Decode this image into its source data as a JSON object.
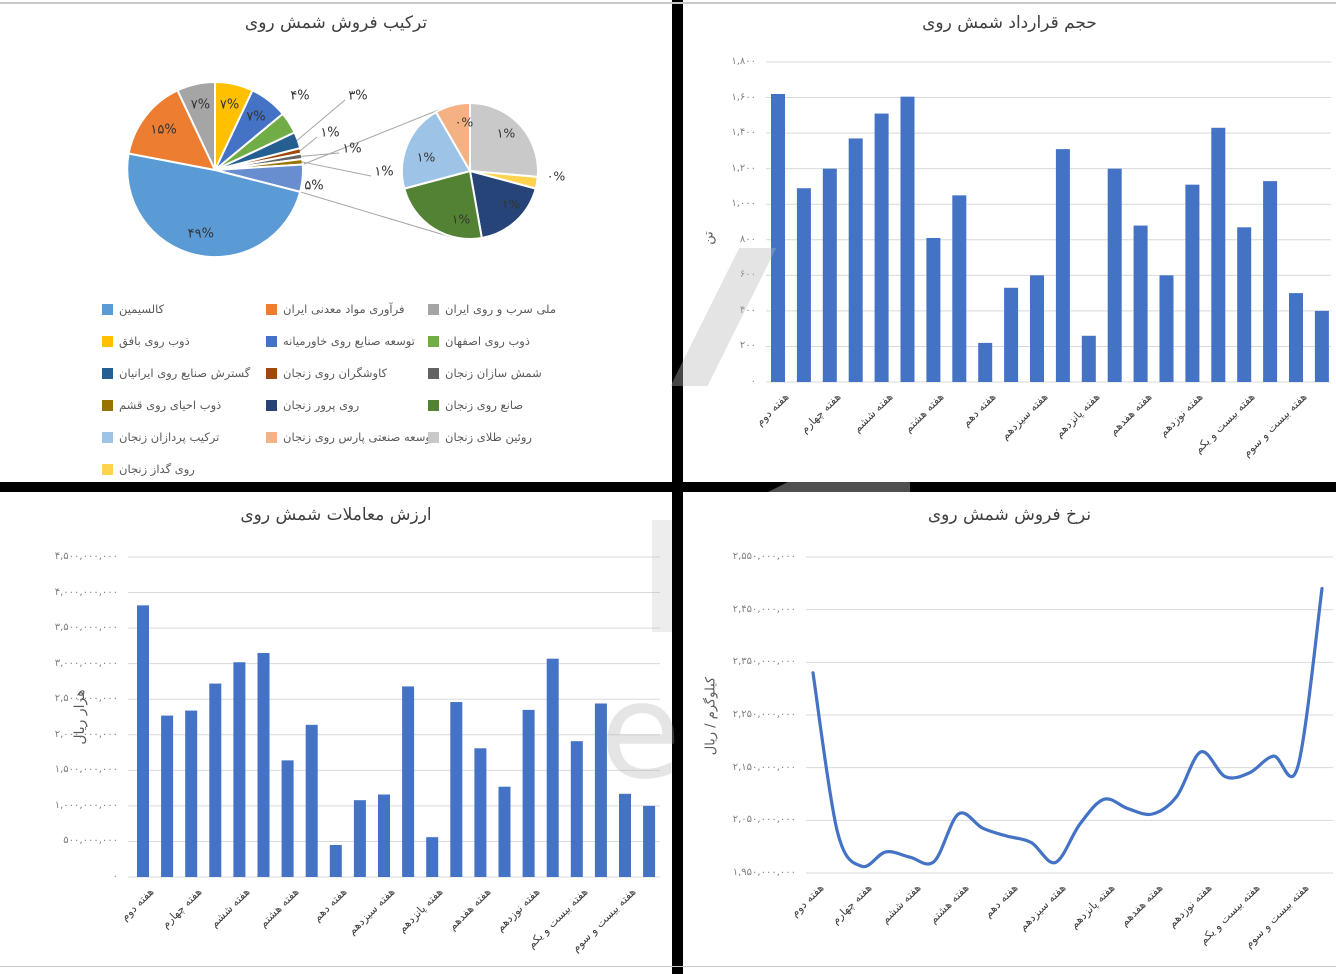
{
  "watermark": {
    "text": "e"
  },
  "chart_data": [
    {
      "type": "pie",
      "variant": "pie-of-pie",
      "title": "ترکیب فروش شمش روی",
      "slices": [
        {
          "label": "ذوب روی بافق",
          "pct": 7,
          "pct_label": "۷%",
          "color": "#FFC000"
        },
        {
          "label": "توسعه صنایع روی خاورمیانه",
          "pct": 7,
          "pct_label": "۷%",
          "color": "#4472C4"
        },
        {
          "label": "ذوب روی اصفهان",
          "pct": 4,
          "pct_label": "۴%",
          "color": "#70AD47"
        },
        {
          "label": "گسترش صنایع روی ایرانیان",
          "pct": 3,
          "pct_label": "۳%",
          "color": "#255E91"
        },
        {
          "label": "کاوشگران روی زنجان",
          "pct": 1,
          "pct_label": "۱%",
          "color": "#9E480E"
        },
        {
          "label": "شمش سازان زنجان",
          "pct": 1,
          "pct_label": "۱%",
          "color": "#636363"
        },
        {
          "label": "ذوب احیای روی قشم",
          "pct": 1,
          "pct_label": "۱%",
          "color": "#997300"
        },
        {
          "label": "",
          "name": "other",
          "pct": 5,
          "pct_label": "۵%",
          "color": "#698ED0"
        },
        {
          "label": "کالسیمین",
          "pct": 49,
          "pct_label": "۴۹%",
          "color": "#5B9BD5"
        },
        {
          "label": "فرآوری مواد معدنی ایران",
          "pct": 15,
          "pct_label": "۱۵%",
          "color": "#ED7D31"
        },
        {
          "label": "ملی سرب و روی ایران",
          "pct": 7,
          "pct_label": "۷%",
          "color": "#A5A5A5"
        }
      ],
      "secondary_slices": [
        {
          "label": "روئین طلای زنجان",
          "pct": 1,
          "pct_label": "۱%",
          "color": "#C9C9C9",
          "arc": 95
        },
        {
          "label": "روی گداز زنجان",
          "pct": 0,
          "pct_label": "۰%",
          "color": "#FFD34D",
          "arc": 10
        },
        {
          "label": "روی پرور زنجان",
          "pct": 1,
          "pct_label": "۱%",
          "color": "#264478",
          "arc": 65
        },
        {
          "label": "صانع روی زنجان",
          "pct": 1,
          "pct_label": "۱%",
          "color": "#548235",
          "arc": 85
        },
        {
          "label": "ترکیب پردازان زنجان",
          "pct": 1,
          "pct_label": "۱%",
          "color": "#9DC3E6",
          "arc": 75
        },
        {
          "label": "توسعه صنعتی پارس روی زنجان",
          "pct": 0,
          "pct_label": "۰%",
          "color": "#F4B183",
          "arc": 30
        }
      ],
      "legend_columns": [
        [
          {
            "label": "کالسیمین",
            "color": "#5B9BD5"
          },
          {
            "label": "ذوب روی بافق",
            "color": "#FFC000"
          },
          {
            "label": "گسترش صنایع روی ایرانیان",
            "color": "#255E91"
          },
          {
            "label": "ذوب احیای روی قشم",
            "color": "#997300"
          },
          {
            "label": "ترکیب پردازان زنجان",
            "color": "#9DC3E6"
          },
          {
            "label": "روی گداز زنجان",
            "color": "#FFD34D"
          }
        ],
        [
          {
            "label": "فرآوری مواد معدنی ایران",
            "color": "#ED7D31"
          },
          {
            "label": "توسعه صنایع روی خاورمیانه",
            "color": "#4472C4"
          },
          {
            "label": "کاوشگران روی زنجان",
            "color": "#9E480E"
          },
          {
            "label": "روی پرور زنجان",
            "color": "#264478"
          },
          {
            "label": "توسعه صنعتی پارس روی زنجان",
            "color": "#F4B183"
          }
        ],
        [
          {
            "label": "ملی سرب و روی ایران",
            "color": "#A5A5A5"
          },
          {
            "label": "ذوب روی اصفهان",
            "color": "#70AD47"
          },
          {
            "label": "شمش سازان زنجان",
            "color": "#636363"
          },
          {
            "label": "صانع روی زنجان",
            "color": "#548235"
          },
          {
            "label": "روئین طلای زنجان",
            "color": "#C9C9C9"
          }
        ]
      ]
    },
    {
      "type": "bar",
      "title": "حجم قرارداد شمش روی",
      "ylabel": "تن",
      "categories": [
        "هفته دوم",
        "هفته چهارم",
        "هفته ششم",
        "هفته هشتم",
        "هفته دهم",
        "هفته سیزدهم",
        "هفته پانزدهم",
        "هفته هفدهم",
        "هفته نوزدهم",
        "هفته بیست و یکم",
        "هفته بیست و سوم"
      ],
      "values": [
        1620,
        1090,
        1200,
        1370,
        1510,
        1605,
        810,
        1050,
        220,
        530,
        600,
        1310,
        260,
        1200,
        880,
        600,
        1110,
        1430,
        870,
        1130,
        500,
        400
      ],
      "ylim": [
        0,
        1800
      ],
      "grid": true,
      "color": "#4472C4",
      "y_ticks": {
        "values": [
          0,
          200,
          400,
          600,
          800,
          1000,
          1200,
          1400,
          1600,
          1800
        ],
        "labels": [
          "۰",
          "۲۰۰",
          "۴۰۰",
          "۶۰۰",
          "۸۰۰",
          "۱,۰۰۰",
          "۱,۲۰۰",
          "۱,۴۰۰",
          "۱,۶۰۰",
          "۱,۸۰۰"
        ]
      }
    },
    {
      "type": "bar",
      "title": "ارزش معاملات شمش روی",
      "ylabel": "هزار ریال",
      "categories": [
        "هفته دوم",
        "هفته چهارم",
        "هفته ششم",
        "هفته هشتم",
        "هفته دهم",
        "هفته سیزدهم",
        "هفته پانزدهم",
        "هفته هفدهم",
        "هفته نوزدهم",
        "هفته بیست و یکم",
        "هفته بیست و سوم"
      ],
      "values": [
        3820000000,
        2270000000,
        2340000000,
        2720000000,
        3020000000,
        3150000000,
        1640000000,
        2140000000,
        450000000,
        1080000000,
        1160000000,
        2680000000,
        560000000,
        2460000000,
        1810000000,
        1270000000,
        2350000000,
        3070000000,
        1910000000,
        2440000000,
        1170000000,
        1000000000
      ],
      "ylim": [
        0,
        4500000000
      ],
      "grid": true,
      "color": "#4472C4",
      "y_ticks": {
        "values": [
          0,
          500000000,
          1000000000,
          1500000000,
          2000000000,
          2500000000,
          3000000000,
          3500000000,
          4000000000,
          4500000000
        ],
        "labels": [
          "۰",
          "۵۰۰,۰۰۰,۰۰۰",
          "۱,۰۰۰,۰۰۰,۰۰۰",
          "۱,۵۰۰,۰۰۰,۰۰۰",
          "۲,۰۰۰,۰۰۰,۰۰۰",
          "۲,۵۰۰,۰۰۰,۰۰۰",
          "۳,۰۰۰,۰۰۰,۰۰۰",
          "۳,۵۰۰,۰۰۰,۰۰۰",
          "۴,۰۰۰,۰۰۰,۰۰۰",
          "۴,۵۰۰,۰۰۰,۰۰۰"
        ]
      }
    },
    {
      "type": "line",
      "title": "نرخ فروش شمش روی",
      "ylabel": "کیلوگرم / ریال",
      "categories": [
        "هفته دوم",
        "هفته چهارم",
        "هفته ششم",
        "هفته هشتم",
        "هفته دهم",
        "هفته سیزدهم",
        "هفته پانزدهم",
        "هفته هفدهم",
        "هفته نوزدهم",
        "هفته بیست و یکم",
        "هفته بیست و سوم"
      ],
      "values": [
        2330000000,
        2030000000,
        1963000000,
        1990000000,
        1980000000,
        1972000000,
        2062000000,
        2035000000,
        2020000000,
        2008000000,
        1970000000,
        2042000000,
        2090000000,
        2072000000,
        2062000000,
        2095000000,
        2180000000,
        2133000000,
        2140000000,
        2172000000,
        2152000000,
        2490000000
      ],
      "ylim": [
        1950000000,
        2550000000
      ],
      "grid": true,
      "color": "#4472C4",
      "y_ticks": {
        "values": [
          1950000000,
          2050000000,
          2150000000,
          2250000000,
          2350000000,
          2450000000,
          2550000000
        ],
        "labels": [
          "۱,۹۵۰,۰۰۰,۰۰۰",
          "۲,۰۵۰,۰۰۰,۰۰۰",
          "۲,۱۵۰,۰۰۰,۰۰۰",
          "۲,۲۵۰,۰۰۰,۰۰۰",
          "۲,۳۵۰,۰۰۰,۰۰۰",
          "۲,۴۵۰,۰۰۰,۰۰۰",
          "۲,۵۵۰,۰۰۰,۰۰۰"
        ]
      }
    }
  ]
}
